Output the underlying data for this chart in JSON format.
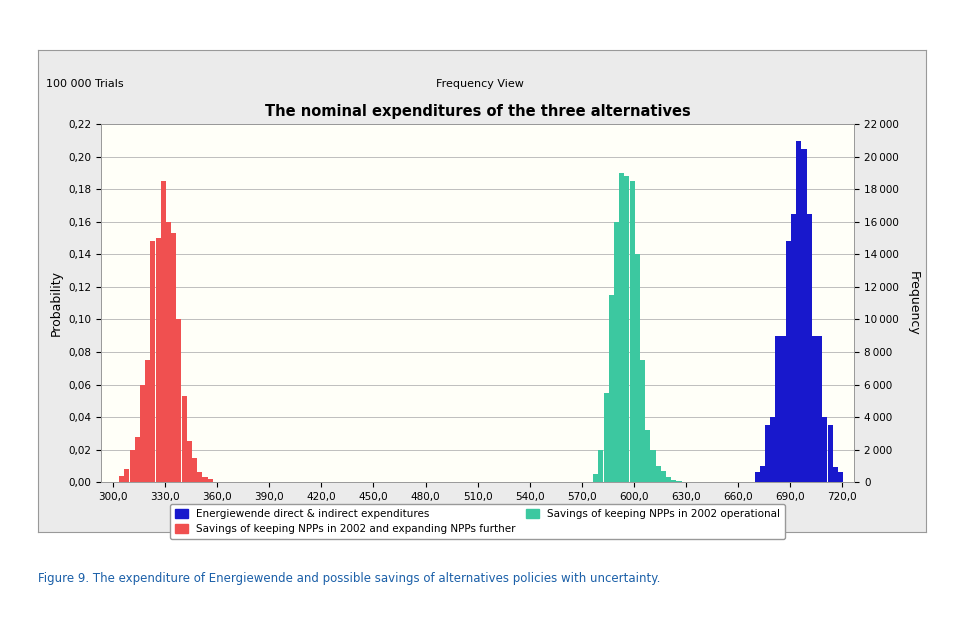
{
  "title": "The nominal expenditures of the three alternatives",
  "header_left": "100 000 Trials",
  "header_right": "Frequency View",
  "xlabel_ticks": [
    300.0,
    330.0,
    360.0,
    390.0,
    420.0,
    450.0,
    480.0,
    510.0,
    540.0,
    570.0,
    600.0,
    630.0,
    660.0,
    690.0,
    720.0
  ],
  "ylabel_left": "Probability",
  "ylabel_right": "Frequency",
  "ylim": [
    0.0,
    0.22
  ],
  "xlim": [
    293.0,
    727.0
  ],
  "yticks_left": [
    0.0,
    0.02,
    0.04,
    0.06,
    0.08,
    0.1,
    0.12,
    0.14,
    0.16,
    0.18,
    0.2,
    0.22
  ],
  "yticks_right": [
    0,
    2000,
    4000,
    6000,
    8000,
    10000,
    12000,
    14000,
    16000,
    18000,
    20000,
    22000
  ],
  "figure_bg": "#F0F0F0",
  "outer_box_bg": "#E8E8E8",
  "plot_bg_color": "#FFFFF8",
  "grid_color": "#BEBEBE",
  "red_color": "#F05050",
  "teal_color": "#3CC8A0",
  "blue_color": "#1818CC",
  "legend_entries": [
    {
      "label": "Energiewende direct & indirect expenditures",
      "color": "#1818CC"
    },
    {
      "label": "Savings of keeping NPPs in 2002 and expanding NPPs further",
      "color": "#F05050"
    },
    {
      "label": "Savings of keeping NPPs in 2002 operational",
      "color": "#3CC8A0"
    }
  ],
  "red_dist": {
    "bins_centers": [
      305,
      308,
      311,
      314,
      317,
      320,
      323,
      326,
      329,
      332,
      335,
      338,
      341,
      344,
      347,
      350,
      353,
      356
    ],
    "bins_heights": [
      0.004,
      0.008,
      0.02,
      0.028,
      0.06,
      0.075,
      0.148,
      0.15,
      0.185,
      0.16,
      0.153,
      0.1,
      0.053,
      0.025,
      0.015,
      0.006,
      0.003,
      0.002
    ]
  },
  "teal_dist": {
    "bins_centers": [
      578,
      581,
      584,
      587,
      590,
      593,
      596,
      599,
      602,
      605,
      608,
      611,
      614,
      617,
      620,
      623,
      626,
      629
    ],
    "bins_heights": [
      0.005,
      0.02,
      0.055,
      0.115,
      0.16,
      0.19,
      0.188,
      0.185,
      0.14,
      0.075,
      0.032,
      0.02,
      0.01,
      0.007,
      0.003,
      0.001,
      0.0005,
      0.0002
    ]
  },
  "blue_dist": {
    "bins_centers": [
      671,
      674,
      677,
      680,
      683,
      686,
      689,
      692,
      695,
      698,
      701,
      704,
      707,
      710,
      713,
      716,
      719
    ],
    "bins_heights": [
      0.006,
      0.01,
      0.035,
      0.04,
      0.09,
      0.09,
      0.148,
      0.165,
      0.21,
      0.205,
      0.165,
      0.09,
      0.09,
      0.04,
      0.035,
      0.009,
      0.006
    ]
  },
  "bin_width": 3.0,
  "caption": "Figure 9. The expenditure of Energiewende and possible savings of alternatives policies with uncertainty."
}
